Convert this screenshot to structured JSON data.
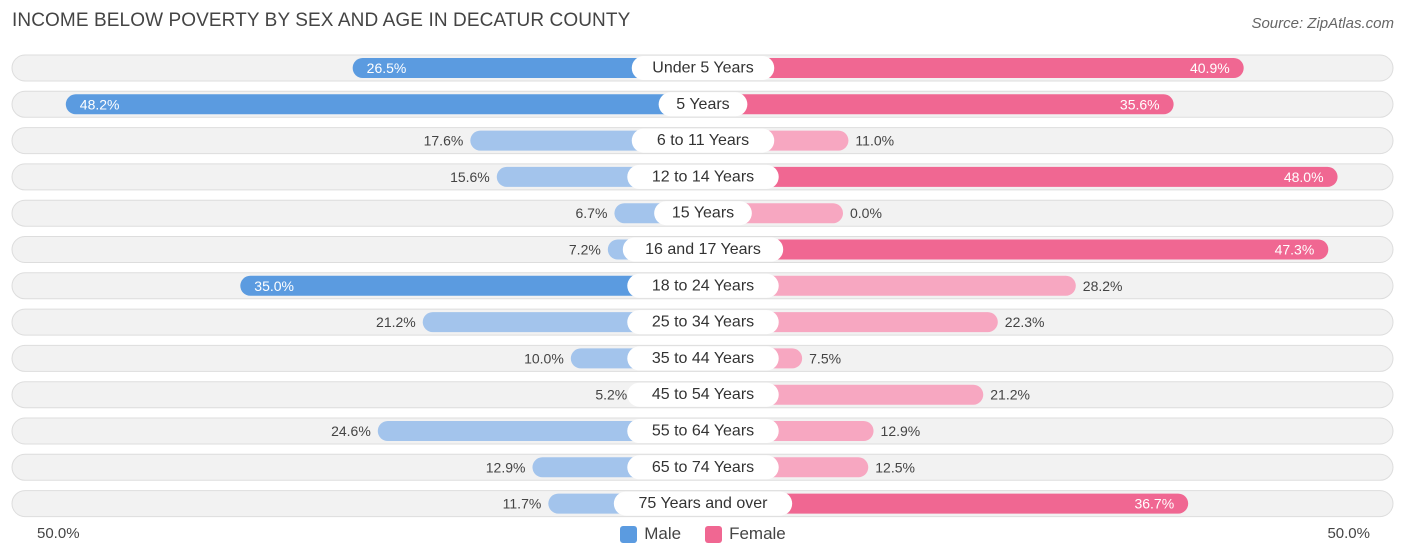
{
  "title": "INCOME BELOW POVERTY BY SEX AND AGE IN DECATUR COUNTY",
  "source": "Source: ZipAtlas.com",
  "colors": {
    "male_strong": "#5b9be0",
    "male_light": "#a3c4ec",
    "female_strong": "#f06792",
    "female_light": "#f7a7c1",
    "row_bg": "#f2f2f2",
    "row_border": "#dddddd"
  },
  "chart_data": {
    "type": "bar",
    "orientation": "horizontal-diverging",
    "title": "INCOME BELOW POVERTY BY SEX AND AGE IN DECATUR COUNTY",
    "categories": [
      "Under 5 Years",
      "5 Years",
      "6 to 11 Years",
      "12 to 14 Years",
      "15 Years",
      "16 and 17 Years",
      "18 to 24 Years",
      "25 to 34 Years",
      "35 to 44 Years",
      "45 to 54 Years",
      "55 to 64 Years",
      "65 to 74 Years",
      "75 Years and over"
    ],
    "series": [
      {
        "name": "Male",
        "values": [
          26.5,
          48.2,
          17.6,
          15.6,
          6.7,
          7.2,
          35.0,
          21.2,
          10.0,
          5.2,
          24.6,
          12.9,
          11.7
        ],
        "labels": [
          "26.5%",
          "48.2%",
          "17.6%",
          "15.6%",
          "6.7%",
          "7.2%",
          "35.0%",
          "21.2%",
          "10.0%",
          "5.2%",
          "24.6%",
          "12.9%",
          "11.7%"
        ]
      },
      {
        "name": "Female",
        "values": [
          40.9,
          35.6,
          11.0,
          48.0,
          0.0,
          47.3,
          28.2,
          22.3,
          7.5,
          21.2,
          12.9,
          12.5,
          36.7
        ],
        "labels": [
          "40.9%",
          "35.6%",
          "11.0%",
          "48.0%",
          "0.0%",
          "47.3%",
          "28.2%",
          "22.3%",
          "7.5%",
          "21.2%",
          "12.9%",
          "12.5%",
          "36.7%"
        ]
      }
    ],
    "xlim": [
      -50,
      50
    ],
    "axis_left_label": "50.0%",
    "axis_right_label": "50.0%",
    "legend": [
      "Male",
      "Female"
    ],
    "legend_position": "bottom-center"
  }
}
